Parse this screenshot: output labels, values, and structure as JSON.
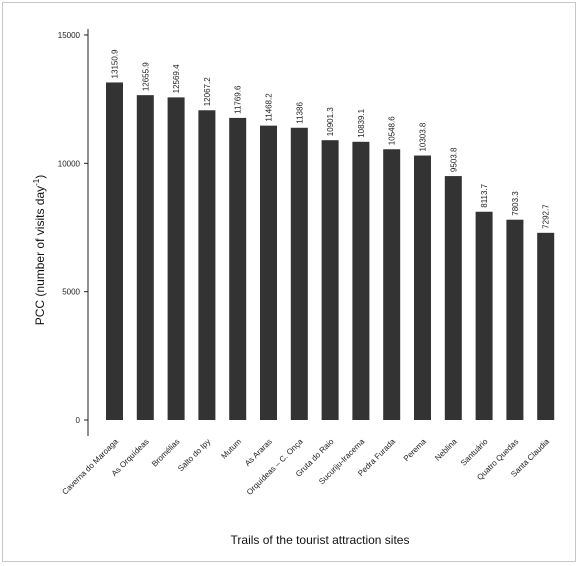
{
  "chart_data": {
    "type": "bar",
    "title": "",
    "xlabel": "Trails of the tourist attraction sites",
    "ylabel": "PCC (number of visits day",
    "ylabel_superscript": "-1",
    "ylabel_suffix": ")",
    "ylim": [
      0,
      15000
    ],
    "yticks": [
      "0",
      "5000",
      "10000",
      "15000"
    ],
    "categories": [
      "Caverna do Maroaga",
      "As Orquídeas",
      "Bromélias",
      "Salto do Ipy",
      "Mutum",
      "As Araras",
      "Orquídeas – C. Onça",
      "Gruta do Raio",
      "Sucuriju-Iracema",
      "Pedra Furada",
      "Perema",
      "Neblina",
      "Santuário",
      "Quatro Quedas",
      "Santa Claudia"
    ],
    "values": [
      13150.9,
      12655.9,
      12569.4,
      12067.2,
      11769.6,
      11468.2,
      11386,
      10901.3,
      10839.1,
      10548.6,
      10303.8,
      9503.8,
      8113.7,
      7803.3,
      7292.7
    ],
    "value_labels": [
      "13150.9",
      "12655.9",
      "12569.4",
      "12067.2",
      "11769.6",
      "11468.2",
      "11386",
      "10901.3",
      "10839.1",
      "10548.6",
      "10303.8",
      "9503.8",
      "8113.7",
      "7803.3",
      "7292.7"
    ],
    "bar_color": "#333333",
    "grid": false,
    "legend": "none"
  }
}
